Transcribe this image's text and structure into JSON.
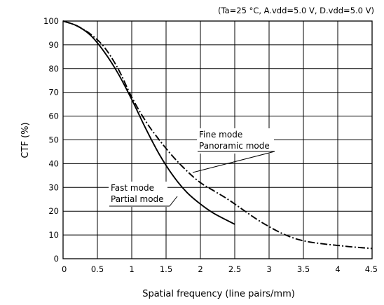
{
  "chart_data": {
    "type": "line",
    "title": "",
    "condition_note": "(Ta=25 °C, A.vdd=5.0 V, D.vdd=5.0 V)",
    "xlabel": "Spatial frequency (line pairs/mm)",
    "ylabel": "CTF (%)",
    "xlim": [
      0,
      4.5
    ],
    "ylim": [
      0,
      100
    ],
    "x_ticks": [
      "0",
      "0.5",
      "1",
      "1.5",
      "2",
      "2.5",
      "3",
      "3.5",
      "4",
      "4.5"
    ],
    "y_ticks": [
      "0",
      "10",
      "20",
      "30",
      "40",
      "50",
      "60",
      "70",
      "80",
      "90",
      "100"
    ],
    "grid": true,
    "series": [
      {
        "name": "Fast mode / Partial mode",
        "style": "solid",
        "label_lines": [
          "Fast mode",
          "Partial mode"
        ],
        "x": [
          0,
          0.2,
          0.4,
          0.6,
          0.8,
          1.0,
          1.2,
          1.4,
          1.6,
          1.8,
          2.0,
          2.2,
          2.5
        ],
        "y": [
          100,
          98,
          94,
          87,
          78,
          67,
          55,
          44,
          35,
          28,
          23,
          19,
          14.5
        ]
      },
      {
        "name": "Fine mode / Panoramic mode",
        "style": "dash-dot",
        "label_lines": [
          "Fine mode",
          "Panoramic mode"
        ],
        "x": [
          0,
          0.2,
          0.4,
          0.6,
          0.8,
          1.0,
          1.2,
          1.4,
          1.6,
          1.8,
          2.0,
          2.2,
          2.4,
          2.6,
          2.8,
          3.0,
          3.2,
          3.4,
          3.6,
          3.8,
          4.0,
          4.2,
          4.5
        ],
        "y": [
          100,
          98,
          94.5,
          89,
          80,
          68,
          58,
          50,
          43,
          37,
          32,
          28.5,
          25,
          21,
          17,
          13.5,
          10.5,
          8.3,
          7,
          6.2,
          5.6,
          5,
          4.3
        ]
      }
    ]
  }
}
